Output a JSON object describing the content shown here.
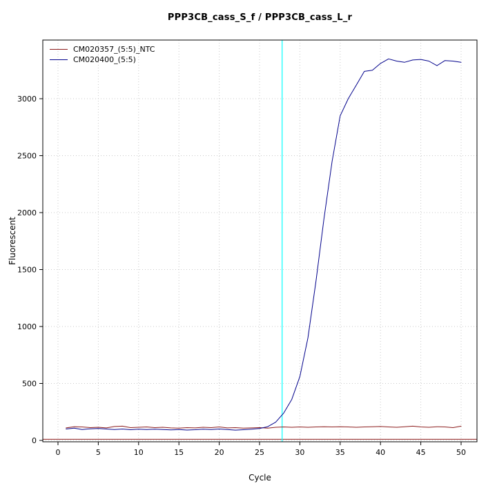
{
  "chart_data": {
    "type": "line",
    "title": "PPP3CB_cass_S_f / PPP3CB_cass_L_r",
    "xlabel": "Cycle",
    "ylabel": "Fluorescent",
    "xlim": [
      0,
      50
    ],
    "ylim": [
      0,
      3400
    ],
    "x_ticks": [
      0,
      5,
      10,
      15,
      20,
      25,
      30,
      35,
      40,
      45,
      50
    ],
    "y_ticks": [
      0,
      500,
      1000,
      1500,
      2000,
      2500,
      3000
    ],
    "grid": "dotted",
    "legend_position": "top-left",
    "threshold_line": {
      "y": 10,
      "color": "#8b1a1a"
    },
    "ct_line": {
      "x": 27.8,
      "color": "#00ffff"
    },
    "x": [
      1,
      2,
      3,
      4,
      5,
      6,
      7,
      8,
      9,
      10,
      11,
      12,
      13,
      14,
      15,
      16,
      17,
      18,
      19,
      20,
      21,
      22,
      23,
      24,
      25,
      26,
      27,
      28,
      29,
      30,
      31,
      32,
      33,
      34,
      35,
      36,
      37,
      38,
      39,
      40,
      41,
      42,
      43,
      44,
      45,
      46,
      47,
      48,
      49,
      50
    ],
    "series": [
      {
        "name": "CM020357_(5:5)_NTC",
        "color": "#8b1a1a",
        "values": [
          110,
          120,
          118,
          112,
          115,
          110,
          122,
          125,
          112,
          115,
          118,
          112,
          115,
          110,
          108,
          112,
          110,
          115,
          112,
          118,
          110,
          112,
          108,
          110,
          112,
          108,
          115,
          118,
          115,
          118,
          115,
          118,
          120,
          118,
          120,
          118,
          115,
          118,
          120,
          122,
          118,
          115,
          120,
          125,
          118,
          115,
          120,
          118,
          112,
          125
        ]
      },
      {
        "name": "CM020400_(5:5)",
        "color": "#00008b",
        "values": [
          100,
          108,
          96,
          102,
          104,
          100,
          96,
          100,
          94,
          98,
          95,
          99,
          96,
          92,
          95,
          91,
          94,
          99,
          95,
          100,
          96,
          90,
          94,
          99,
          105,
          120,
          160,
          240,
          360,
          560,
          900,
          1400,
          1950,
          2450,
          2850,
          3000,
          3120,
          3240,
          3250,
          3310,
          3350,
          3330,
          3320,
          3340,
          3345,
          3330,
          3290,
          3335,
          3330,
          3320
        ]
      }
    ]
  },
  "colors": {
    "grid": "#c8c8c8",
    "box": "#000000",
    "tick_label": "#1a1a1a"
  }
}
